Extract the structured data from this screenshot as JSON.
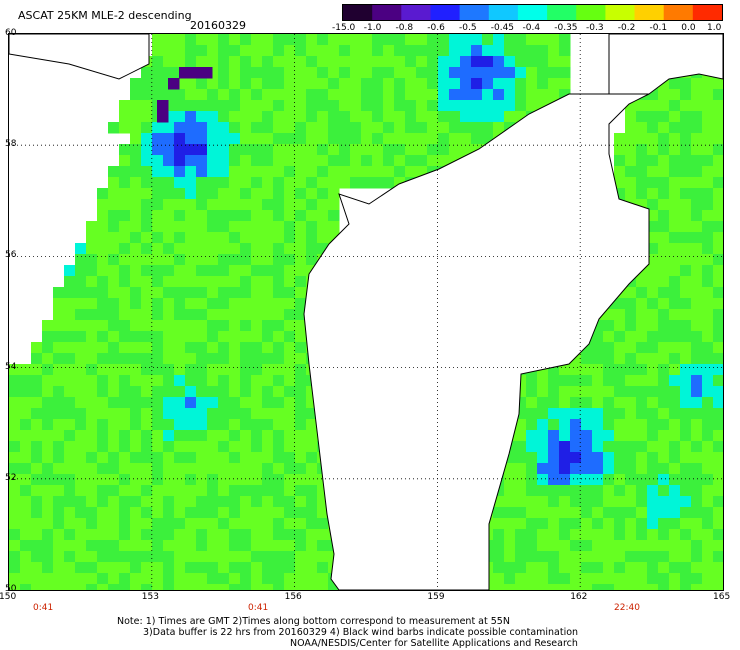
{
  "header": {
    "title": "ASCAT 25KM MLE-2 descending",
    "date": "20160329"
  },
  "colorbar": {
    "tick_labels": [
      "-15.0",
      "-1.0",
      "-0.8",
      "-0.6",
      "-0.5",
      "-0.45",
      "-0.4",
      "-0.35",
      "-0.3",
      "-0.2",
      "-0.1",
      "0.0",
      "1.0"
    ],
    "colors": [
      "#200030",
      "#4b0082",
      "#5a1ad0",
      "#2020ff",
      "#1e78ff",
      "#10c8ff",
      "#00ffea",
      "#22ff66",
      "#66ff11",
      "#c8ff00",
      "#ffd000",
      "#ff7a00",
      "#ff2a00"
    ]
  },
  "axes": {
    "x_ticks": [
      "150",
      "153",
      "156",
      "159",
      "162",
      "165"
    ],
    "y_ticks": [
      "60",
      "58",
      "56",
      "54",
      "52",
      "50"
    ],
    "x_range": [
      150,
      165
    ],
    "y_range": [
      50,
      60
    ]
  },
  "pass_times": [
    "0:41",
    "0:41",
    "22:40"
  ],
  "notes": {
    "line1": "Note: 1) Times are GMT 2)Times along bottom correspond to measurement at 55N",
    "line2": "3)Data buffer is 22 hrs from 20160329 4) Black wind barbs indicate possible contamination",
    "line3": "NOAA/NESDIS/Center for Satellite Applications and Research"
  },
  "field_colors": {
    "ocean_base": "#3cf03c",
    "ocean_light": "#66ff22",
    "cyan": "#00f5d8",
    "blue": "#1e6cff",
    "deep_blue": "#1f1fe6",
    "purple": "#4b0082",
    "land": "#ffffff",
    "coast": "#000000"
  }
}
